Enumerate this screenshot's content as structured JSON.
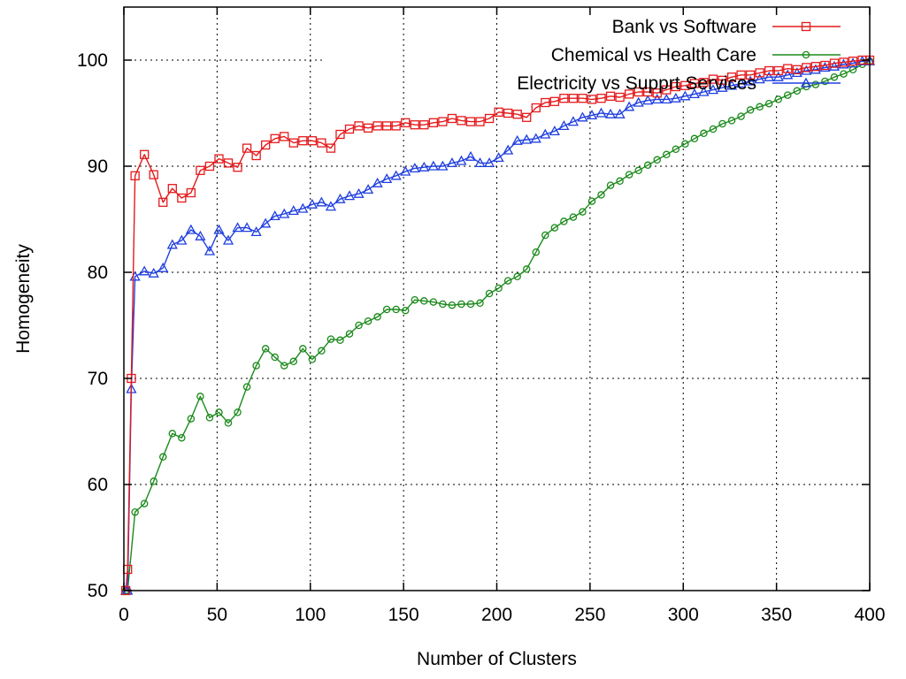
{
  "chart_data": {
    "type": "line",
    "title": "",
    "xlabel": "Number of Clusters",
    "ylabel": "Homogeneity",
    "xlim": [
      0,
      400
    ],
    "ylim": [
      50,
      105
    ],
    "xticks": [
      0,
      50,
      100,
      150,
      200,
      250,
      300,
      350,
      400
    ],
    "yticks": [
      50,
      60,
      70,
      80,
      90,
      100
    ],
    "grid": true,
    "legend_position": "top-right",
    "series": [
      {
        "name": "Bank vs Software",
        "color": "#e41a1c",
        "marker": "square",
        "x": [
          1,
          2,
          4,
          6,
          11,
          16,
          21,
          26,
          31,
          36,
          41,
          46,
          51,
          56,
          61,
          66,
          71,
          76,
          81,
          86,
          91,
          96,
          101,
          106,
          111,
          116,
          121,
          126,
          131,
          136,
          141,
          146,
          151,
          156,
          161,
          166,
          171,
          176,
          181,
          186,
          191,
          196,
          201,
          206,
          211,
          216,
          221,
          226,
          231,
          236,
          241,
          246,
          251,
          256,
          261,
          266,
          271,
          276,
          281,
          286,
          291,
          296,
          301,
          306,
          311,
          316,
          321,
          326,
          331,
          336,
          341,
          346,
          351,
          356,
          361,
          366,
          371,
          376,
          381,
          386,
          391,
          396,
          400
        ],
        "y": [
          50,
          52,
          70,
          89.1,
          91.1,
          89.2,
          86.6,
          87.9,
          87,
          87.5,
          89.6,
          90,
          90.7,
          90.3,
          89.9,
          91.7,
          91,
          92,
          92.6,
          92.8,
          92.2,
          92.4,
          92.4,
          92.2,
          91.7,
          93,
          93.5,
          93.8,
          93.6,
          93.8,
          93.8,
          93.8,
          94.1,
          93.9,
          93.9,
          94.1,
          94.2,
          94.5,
          94.3,
          94.2,
          94.2,
          94.5,
          95.1,
          95,
          94.9,
          94.6,
          95.5,
          96,
          96.1,
          96.4,
          96.4,
          96.4,
          96.3,
          96.4,
          96.6,
          96.5,
          96.8,
          97,
          97,
          96.9,
          97.2,
          97.5,
          97.6,
          97.8,
          97.9,
          98.2,
          98.1,
          98.4,
          98.6,
          98.6,
          98.8,
          99,
          99,
          99.2,
          99.1,
          99.3,
          99.4,
          99.5,
          99.7,
          99.8,
          99.9,
          100,
          100
        ]
      },
      {
        "name": "Chemical vs Health Care",
        "color": "#1a8a1a",
        "marker": "circle",
        "x": [
          1,
          2,
          6,
          11,
          16,
          21,
          26,
          31,
          36,
          41,
          46,
          51,
          56,
          61,
          66,
          71,
          76,
          81,
          86,
          91,
          96,
          101,
          106,
          111,
          116,
          121,
          126,
          131,
          136,
          141,
          146,
          151,
          156,
          161,
          166,
          171,
          176,
          181,
          186,
          191,
          196,
          201,
          206,
          211,
          216,
          221,
          226,
          231,
          236,
          241,
          246,
          251,
          256,
          261,
          266,
          271,
          276,
          281,
          286,
          291,
          296,
          301,
          306,
          311,
          316,
          321,
          326,
          331,
          336,
          341,
          346,
          351,
          356,
          361,
          366,
          371,
          376,
          381,
          386,
          391,
          396,
          400
        ],
        "y": [
          50,
          50,
          57.4,
          58.2,
          60.3,
          62.6,
          64.8,
          64.4,
          66.2,
          68.3,
          66.3,
          66.8,
          65.8,
          66.8,
          69.2,
          71.2,
          72.8,
          72,
          71.2,
          71.6,
          72.8,
          71.8,
          72.6,
          73.7,
          73.6,
          74.2,
          75,
          75.4,
          75.8,
          76.5,
          76.5,
          76.4,
          77.4,
          77.3,
          77.2,
          77,
          76.9,
          77,
          77,
          77.1,
          78,
          78.5,
          79.2,
          79.6,
          80.3,
          81.9,
          83.5,
          84.2,
          84.8,
          85.2,
          85.7,
          86.7,
          87.3,
          88.2,
          88.6,
          89.2,
          89.6,
          90.1,
          90.6,
          91.1,
          91.6,
          92.1,
          92.6,
          93.1,
          93.5,
          94,
          94.3,
          94.7,
          95.3,
          95.6,
          95.9,
          96.3,
          96.7,
          97.1,
          97.5,
          97.7,
          98,
          98.4,
          98.7,
          99.1,
          99.6,
          99.9
        ]
      },
      {
        "name": "Electricity vs Supprt Services",
        "color": "#1f3fe0",
        "marker": "triangle",
        "x": [
          1,
          2,
          4,
          6,
          11,
          16,
          21,
          26,
          31,
          36,
          41,
          46,
          51,
          56,
          61,
          66,
          71,
          76,
          81,
          86,
          91,
          96,
          101,
          106,
          111,
          116,
          121,
          126,
          131,
          136,
          141,
          146,
          151,
          156,
          161,
          166,
          171,
          176,
          181,
          186,
          191,
          196,
          201,
          206,
          211,
          216,
          221,
          226,
          231,
          236,
          241,
          246,
          251,
          256,
          261,
          266,
          271,
          276,
          281,
          286,
          291,
          296,
          301,
          306,
          311,
          316,
          321,
          326,
          331,
          336,
          341,
          346,
          351,
          356,
          361,
          366,
          371,
          376,
          381,
          386,
          391,
          396,
          400
        ],
        "y": [
          50,
          50,
          69,
          79.6,
          80.1,
          79.9,
          80.4,
          82.6,
          83,
          84,
          83.4,
          82,
          84,
          83,
          84.2,
          84.2,
          83.8,
          84.6,
          85.3,
          85.5,
          85.8,
          86,
          86.4,
          86.6,
          86.2,
          86.9,
          87.2,
          87.4,
          87.8,
          88.4,
          88.8,
          89.1,
          89.5,
          89.8,
          89.9,
          90,
          90,
          90.3,
          90.5,
          90.9,
          90.3,
          90.3,
          90.8,
          91.5,
          92.4,
          92.5,
          92.6,
          93,
          93.3,
          93.8,
          94.2,
          94.6,
          94.8,
          95,
          94.9,
          94.9,
          95.6,
          96,
          96.2,
          96.3,
          96.3,
          96.4,
          96.6,
          96.8,
          97,
          97.2,
          97.4,
          97.6,
          97.8,
          98,
          98.2,
          98.4,
          98.4,
          98.6,
          98.8,
          99,
          99.1,
          99.3,
          99.4,
          99.6,
          99.7,
          99.9,
          99.9
        ]
      }
    ]
  }
}
